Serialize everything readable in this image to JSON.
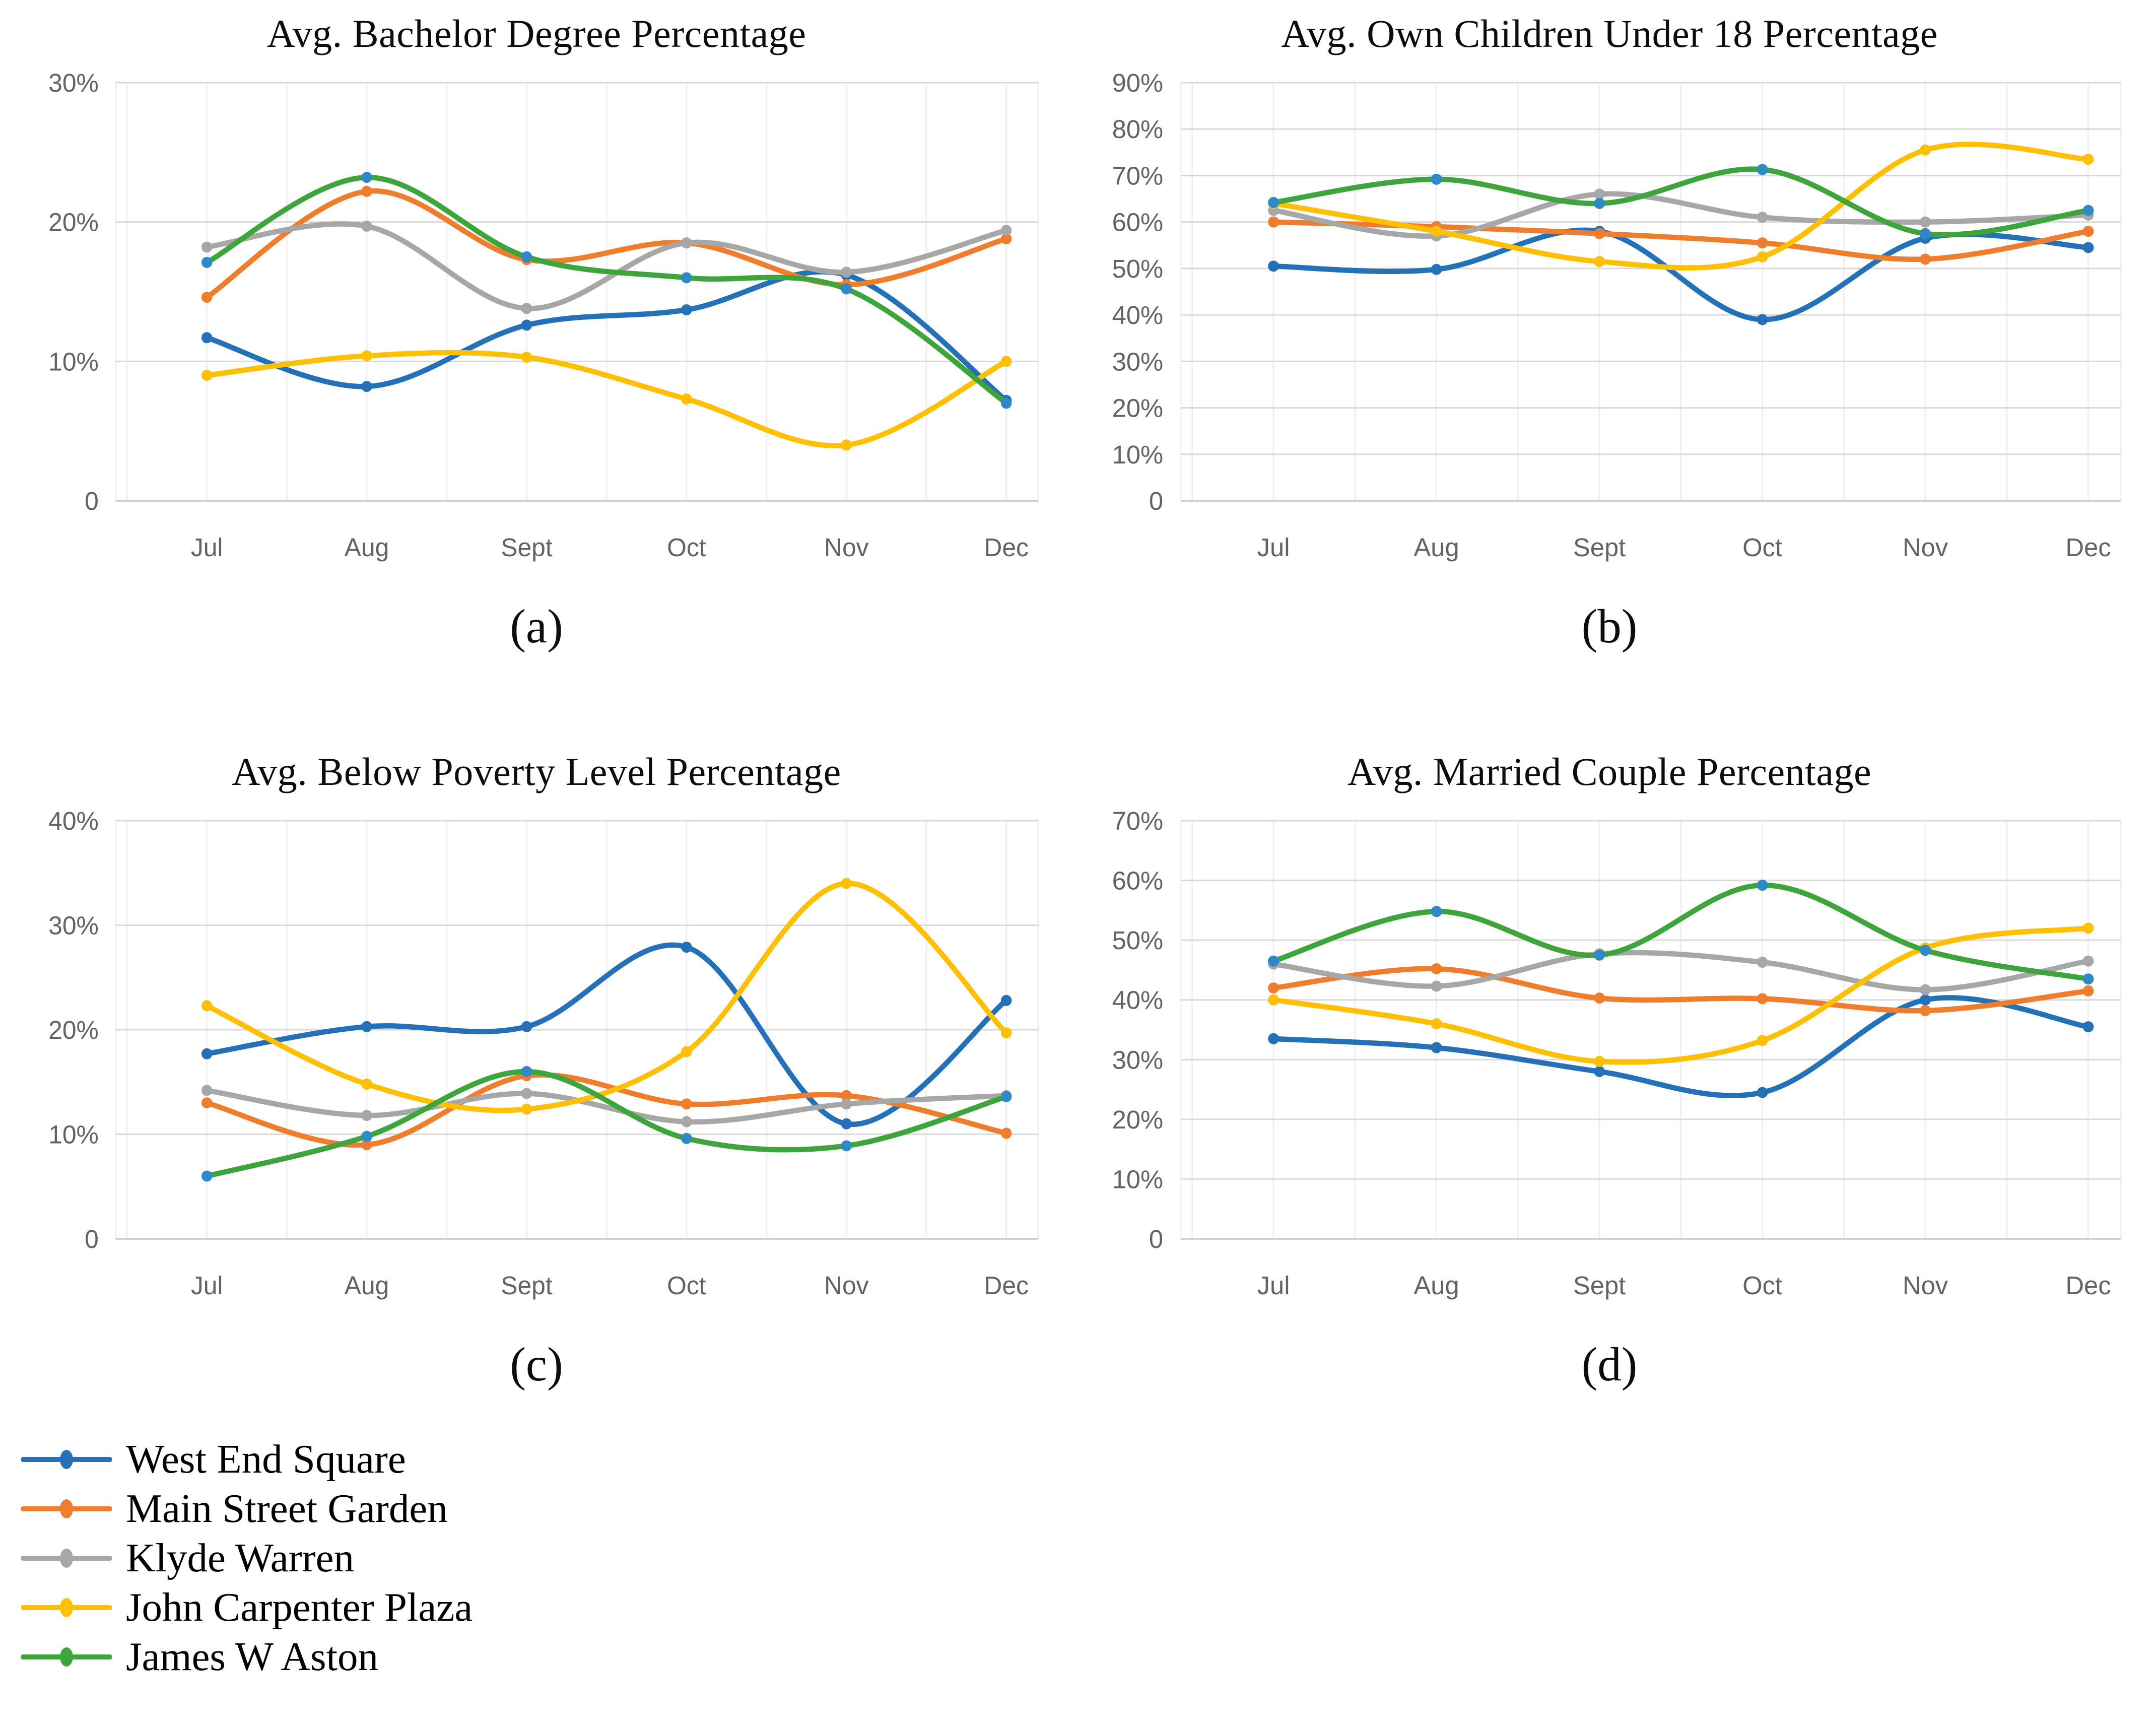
{
  "legend": {
    "items": [
      {
        "label": "West End Square",
        "color": "#2571B8",
        "marker_color": "#2571B8"
      },
      {
        "label": "Main Street Garden",
        "color": "#EF7D2E",
        "marker_color": "#EF7D2E"
      },
      {
        "label": "Klyde Warren",
        "color": "#A7A7A7",
        "marker_color": "#A7A7A7"
      },
      {
        "label": "John Carpenter Plaza",
        "color": "#FFC003",
        "marker_color": "#FFC003"
      },
      {
        "label": "James W Aston",
        "color": "#3EA43C",
        "marker_color": "#2F89C6"
      }
    ]
  },
  "chart_data": [
    {
      "id": "a",
      "type": "line",
      "title": "Avg. Bachelor Degree Percentage",
      "caption": "(a)",
      "categories": [
        "Jul",
        "Aug",
        "Sept",
        "Oct",
        "Nov",
        "Dec"
      ],
      "ylim": [
        0,
        30
      ],
      "ytick_values": [
        0,
        10,
        20,
        30
      ],
      "ytick_labels": [
        "0",
        "10%",
        "20%",
        "30%"
      ],
      "grid": true,
      "legend_position": "bottom-left-shared",
      "series": [
        {
          "name": "West End Square",
          "values": [
            11.7,
            8.2,
            12.6,
            13.7,
            16.2,
            7.2
          ]
        },
        {
          "name": "Main Street Garden",
          "values": [
            14.6,
            22.2,
            17.3,
            18.5,
            15.5,
            18.8
          ]
        },
        {
          "name": "Klyde Warren",
          "values": [
            18.2,
            19.7,
            13.8,
            18.5,
            16.4,
            19.4
          ]
        },
        {
          "name": "John Carpenter Plaza",
          "values": [
            9.0,
            10.4,
            10.3,
            7.3,
            4.0,
            10.0
          ]
        },
        {
          "name": "James W Aston",
          "values": [
            17.1,
            23.2,
            17.5,
            16.0,
            15.2,
            7.0
          ]
        }
      ]
    },
    {
      "id": "b",
      "type": "line",
      "title": "Avg. Own Children Under 18 Percentage",
      "caption": "(b)",
      "categories": [
        "Jul",
        "Aug",
        "Sept",
        "Oct",
        "Nov",
        "Dec"
      ],
      "ylim": [
        0,
        90
      ],
      "ytick_values": [
        0,
        10,
        20,
        30,
        40,
        50,
        60,
        70,
        80,
        90
      ],
      "ytick_labels": [
        "0",
        "10%",
        "20%",
        "30%",
        "40%",
        "50%",
        "60%",
        "70%",
        "80%",
        "90%"
      ],
      "grid": true,
      "legend_position": "bottom-left-shared",
      "series": [
        {
          "name": "West End Square",
          "values": [
            50.5,
            49.8,
            58.0,
            39.0,
            56.5,
            54.5
          ]
        },
        {
          "name": "Main Street Garden",
          "values": [
            60.0,
            59.0,
            57.5,
            55.5,
            52.0,
            58.0
          ]
        },
        {
          "name": "Klyde Warren",
          "values": [
            62.5,
            57.0,
            66.0,
            61.0,
            60.0,
            61.5
          ]
        },
        {
          "name": "John Carpenter Plaza",
          "values": [
            64.0,
            58.0,
            51.5,
            52.5,
            75.5,
            73.5
          ]
        },
        {
          "name": "James W Aston",
          "values": [
            64.2,
            69.2,
            64.0,
            71.3,
            57.5,
            62.5
          ]
        }
      ]
    },
    {
      "id": "c",
      "type": "line",
      "title": "Avg. Below Poverty Level Percentage",
      "caption": "(c)",
      "categories": [
        "Jul",
        "Aug",
        "Sept",
        "Oct",
        "Nov",
        "Dec"
      ],
      "ylim": [
        0,
        40
      ],
      "ytick_values": [
        0,
        10,
        20,
        30,
        40
      ],
      "ytick_labels": [
        "0",
        "10%",
        "20%",
        "30%",
        "40%"
      ],
      "grid": true,
      "legend_position": "bottom-left-shared",
      "series": [
        {
          "name": "West End Square",
          "values": [
            17.7,
            20.3,
            20.3,
            27.9,
            11.0,
            22.8
          ]
        },
        {
          "name": "Main Street Garden",
          "values": [
            13.0,
            9.0,
            15.6,
            12.9,
            13.7,
            10.1
          ]
        },
        {
          "name": "Klyde Warren",
          "values": [
            14.2,
            11.8,
            13.9,
            11.2,
            12.9,
            13.7
          ]
        },
        {
          "name": "John Carpenter Plaza",
          "values": [
            22.3,
            14.8,
            12.4,
            17.9,
            34.0,
            19.7
          ]
        },
        {
          "name": "James W Aston",
          "values": [
            6.0,
            9.8,
            16.0,
            9.6,
            8.9,
            13.6
          ]
        }
      ]
    },
    {
      "id": "d",
      "type": "line",
      "title": "Avg. Married Couple Percentage",
      "caption": "(d)",
      "categories": [
        "Jul",
        "Aug",
        "Sept",
        "Oct",
        "Nov",
        "Dec"
      ],
      "ylim": [
        0,
        70
      ],
      "ytick_values": [
        0,
        10,
        20,
        30,
        40,
        50,
        60,
        70
      ],
      "ytick_labels": [
        "0",
        "10%",
        "20%",
        "30%",
        "40%",
        "50%",
        "60%",
        "70%"
      ],
      "grid": true,
      "legend_position": "bottom-left-shared",
      "series": [
        {
          "name": "West End Square",
          "values": [
            33.5,
            32.0,
            28.0,
            24.5,
            40.0,
            35.5
          ]
        },
        {
          "name": "Main Street Garden",
          "values": [
            42.0,
            45.2,
            40.3,
            40.2,
            38.2,
            41.5
          ]
        },
        {
          "name": "Klyde Warren",
          "values": [
            46.0,
            42.3,
            47.7,
            46.3,
            41.7,
            46.5
          ]
        },
        {
          "name": "John Carpenter Plaza",
          "values": [
            40.0,
            36.0,
            29.7,
            33.2,
            48.7,
            52.0
          ]
        },
        {
          "name": "James W Aston",
          "values": [
            46.5,
            54.8,
            47.5,
            59.2,
            48.3,
            43.5
          ]
        }
      ]
    }
  ],
  "style": {
    "h_grid_color": "#D9D9D9",
    "v_grid_color": "#EFEFEF",
    "axis_color": "#C9C9C9",
    "tick_text_color": "#636363",
    "title_color": "#0d0d0d"
  }
}
